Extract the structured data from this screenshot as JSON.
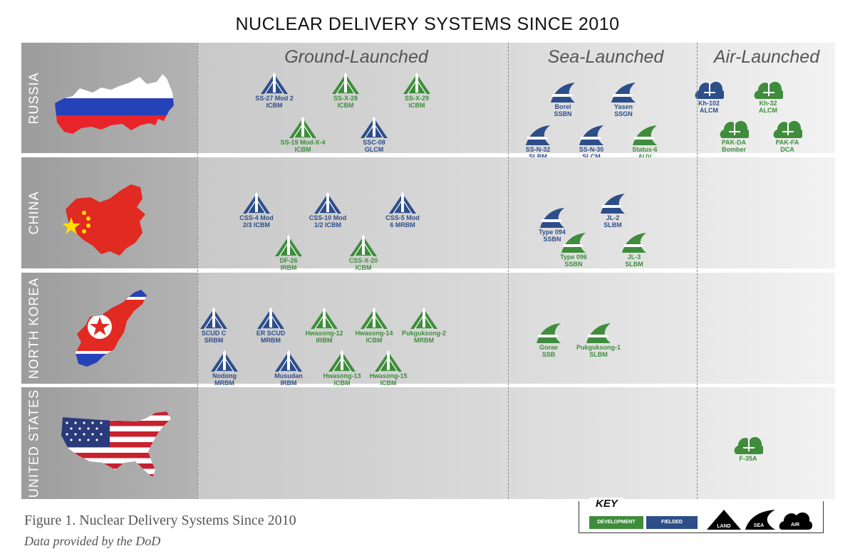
{
  "title": "NUCLEAR DELIVERY SYSTEMS SINCE 2010",
  "categories": {
    "ground": "Ground-Launched",
    "sea": "Sea-Launched",
    "air": "Air-Launched"
  },
  "countries": [
    "RUSSIA",
    "CHINA",
    "NORTH KOREA",
    "UNITED STATES"
  ],
  "colors": {
    "development": "#3f8d3c",
    "fielded": "#2e4e8a"
  },
  "systems": {
    "russia": [
      {
        "name": "SS-27 Mod 2",
        "type": "ICBM",
        "domain": "land",
        "status": "fielded"
      },
      {
        "name": "SS-X-28",
        "type": "ICBM",
        "domain": "land",
        "status": "development"
      },
      {
        "name": "SS-X-29",
        "type": "ICBM",
        "domain": "land",
        "status": "development"
      },
      {
        "name": "SS-19 Mod-X-4",
        "type": "ICBM",
        "domain": "land",
        "status": "development"
      },
      {
        "name": "SSC-08",
        "type": "GLCM",
        "domain": "land",
        "status": "fielded"
      },
      {
        "name": "Borei",
        "type": "SSBN",
        "domain": "sea",
        "status": "fielded"
      },
      {
        "name": "Yasen",
        "type": "SSGN",
        "domain": "sea",
        "status": "fielded"
      },
      {
        "name": "SS-N-32",
        "type": "SLBM",
        "domain": "sea",
        "status": "fielded"
      },
      {
        "name": "SS-N-30",
        "type": "SLCM",
        "domain": "sea",
        "status": "fielded"
      },
      {
        "name": "Status-6",
        "type": "AUV",
        "domain": "sea",
        "status": "development"
      },
      {
        "name": "Kh-102",
        "type": "ALCM",
        "domain": "air",
        "status": "fielded"
      },
      {
        "name": "Kh-32",
        "type": "ALCM",
        "domain": "air",
        "status": "development"
      },
      {
        "name": "PAK-DA",
        "type": "Bomber",
        "domain": "air",
        "status": "development"
      },
      {
        "name": "PAK-FA",
        "type": "DCA",
        "domain": "air",
        "status": "development"
      }
    ],
    "china": [
      {
        "name": "CSS-4 Mod",
        "type": "2/3 ICBM",
        "domain": "land",
        "status": "fielded"
      },
      {
        "name": "CSS-10 Mod",
        "type": "1/2 ICBM",
        "domain": "land",
        "status": "fielded"
      },
      {
        "name": "CSS-5 Mod",
        "type": "6 MRBM",
        "domain": "land",
        "status": "fielded"
      },
      {
        "name": "DF-26",
        "type": "IRBM",
        "domain": "land",
        "status": "development"
      },
      {
        "name": "CSS-X-20",
        "type": "ICBM",
        "domain": "land",
        "status": "development"
      },
      {
        "name": "Type 094",
        "type": "SSBN",
        "domain": "sea",
        "status": "fielded"
      },
      {
        "name": "JL-2",
        "type": "SLBM",
        "domain": "sea",
        "status": "fielded"
      },
      {
        "name": "Type 096",
        "type": "SSBN",
        "domain": "sea",
        "status": "development"
      },
      {
        "name": "JL-3",
        "type": "SLBM",
        "domain": "sea",
        "status": "development"
      }
    ],
    "north_korea": [
      {
        "name": "SCUD C",
        "type": "SRBM",
        "domain": "land",
        "status": "fielded"
      },
      {
        "name": "ER SCUD",
        "type": "MRBM",
        "domain": "land",
        "status": "fielded"
      },
      {
        "name": "Hwasong-12",
        "type": "IRBM",
        "domain": "land",
        "status": "development"
      },
      {
        "name": "Hwasong-14",
        "type": "ICBM",
        "domain": "land",
        "status": "development"
      },
      {
        "name": "Pukguksong-2",
        "type": "MRBM",
        "domain": "land",
        "status": "development"
      },
      {
        "name": "Nodong",
        "type": "MRBM",
        "domain": "land",
        "status": "fielded"
      },
      {
        "name": "Musudan",
        "type": "IRBM",
        "domain": "land",
        "status": "fielded"
      },
      {
        "name": "Hwasong-13",
        "type": "ICBM",
        "domain": "land",
        "status": "development"
      },
      {
        "name": "Hwasong-15",
        "type": "ICBM",
        "domain": "land",
        "status": "development"
      },
      {
        "name": "Gorae",
        "type": "SSB",
        "domain": "sea",
        "status": "development"
      },
      {
        "name": "Pukguksong-1",
        "type": "SLBM",
        "domain": "sea",
        "status": "development"
      }
    ],
    "united_states": [
      {
        "name": "F-35A",
        "type": "",
        "domain": "air",
        "status": "development"
      }
    ]
  },
  "caption": "Figure 1. Nuclear Delivery Systems Since 2010",
  "source": "Data provided by the DoD",
  "key": {
    "title": "KEY",
    "development": "DEVELOPMENT",
    "fielded": "FIELDED",
    "land": "LAND",
    "sea": "SEA",
    "air": "AIR"
  }
}
